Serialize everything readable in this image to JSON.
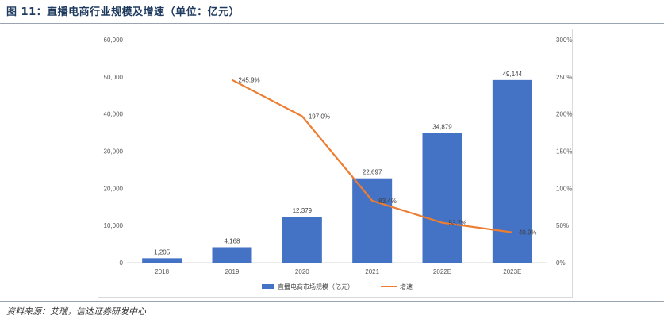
{
  "figure": {
    "title": "图 11：直播电商行业规模及增速（单位：亿元）",
    "source": "资料来源：艾瑞，信达证券研发中心"
  },
  "chart_data": {
    "type": "bar",
    "categories": [
      "2018",
      "2019",
      "2020",
      "2021",
      "2022E",
      "2023E"
    ],
    "series": [
      {
        "name": "直播电商市场规模（亿元）",
        "type": "bar",
        "axis": "left",
        "color": "#4472C4",
        "values": [
          1205,
          4168,
          12379,
          22697,
          34879,
          49144
        ],
        "labels": [
          "1,205",
          "4,168",
          "12,379",
          "22,697",
          "34,879",
          "49,144"
        ]
      },
      {
        "name": "增速",
        "type": "line",
        "axis": "right",
        "color": "#ED7D31",
        "values": [
          null,
          245.9,
          197.0,
          83.4,
          53.7,
          40.9
        ],
        "labels": [
          "",
          "245.9%",
          "197.0%",
          "83.4%",
          "53.7%",
          "40.9%"
        ]
      }
    ],
    "y_left": {
      "range": [
        0,
        60000
      ],
      "ticks": [
        "0",
        "10,000",
        "20,000",
        "30,000",
        "40,000",
        "50,000",
        "60,000"
      ]
    },
    "y_right": {
      "range": [
        0,
        300
      ],
      "ticks": [
        "0%",
        "50%",
        "100%",
        "150%",
        "200%",
        "250%",
        "300%"
      ]
    },
    "grid": false,
    "legend": "bottom"
  }
}
